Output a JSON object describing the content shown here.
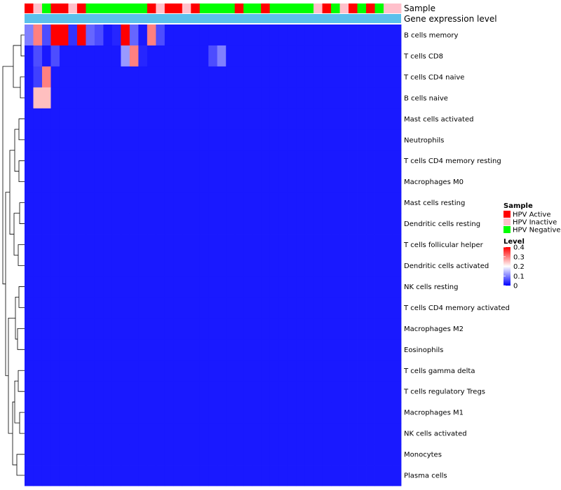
{
  "chart_data": {
    "type": "heatmap",
    "annotation_rows": {
      "sample_label": "Sample",
      "expression_label": "Gene expression level"
    },
    "sample_groups": [
      "Active",
      "Inactive",
      "Negative",
      "Active",
      "Active",
      "Inactive",
      "Active",
      "Negative",
      "Negative",
      "Negative",
      "Negative",
      "Negative",
      "Negative",
      "Negative",
      "Active",
      "Inactive",
      "Active",
      "Active",
      "Inactive",
      "Active",
      "Negative",
      "Negative",
      "Negative",
      "Negative",
      "Active",
      "Negative",
      "Negative",
      "Active",
      "Negative",
      "Negative",
      "Negative",
      "Negative",
      "Negative",
      "Inactive",
      "Active",
      "Negative",
      "Inactive",
      "Active",
      "Negative",
      "Active",
      "Negative",
      "Inactive",
      "Inactive"
    ],
    "rows": [
      "B cells memory",
      "T cells CD8",
      "T cells CD4 naive",
      "B cells naive",
      "Mast cells activated",
      "Neutrophils",
      "T cells CD4 memory resting",
      "Macrophages M0",
      "Mast cells resting",
      "Dendritic cells resting",
      "T cells follicular helper",
      "Dendritic cells activated",
      "NK cells resting",
      "T cells CD4 memory activated",
      "Macrophages M2",
      "Eosinophils",
      "T cells gamma delta",
      "T cells regulatory  Tregs",
      "Macrophages M1",
      "NK cells activated",
      "Monocytes",
      "Plasma cells"
    ],
    "values": [
      [
        0.1,
        0.3,
        0.06,
        0.4,
        0.4,
        0.04,
        0.4,
        0.08,
        0.06,
        0.02,
        0.03,
        0.4,
        0.08,
        0.02,
        0.3,
        0.06,
        0.02,
        0.02,
        0.02,
        0.02,
        0.02,
        0.02,
        0.02,
        0.02,
        0.02,
        0.02,
        0.02,
        0.02,
        0.02,
        0.02,
        0.02,
        0.02,
        0.02,
        0.02,
        0.02,
        0.02,
        0.02,
        0.02,
        0.02,
        0.02,
        0.02,
        0.02,
        0.02
      ],
      [
        0.02,
        0.06,
        0.02,
        0.06,
        0.02,
        0.02,
        0.02,
        0.02,
        0.02,
        0.02,
        0.02,
        0.12,
        0.3,
        0.03,
        0.02,
        0.02,
        0.02,
        0.02,
        0.02,
        0.02,
        0.02,
        0.06,
        0.1,
        0.02,
        0.02,
        0.02,
        0.02,
        0.02,
        0.02,
        0.02,
        0.02,
        0.02,
        0.02,
        0.02,
        0.02,
        0.02,
        0.02,
        0.02,
        0.02,
        0.02,
        0.02,
        0.02,
        0.02
      ],
      [
        0.02,
        0.05,
        0.3,
        0.02,
        0.02,
        0.02,
        0.02,
        0.02,
        0.02,
        0.02,
        0.02,
        0.02,
        0.02,
        0.02,
        0.02,
        0.02,
        0.02,
        0.02,
        0.02,
        0.02,
        0.02,
        0.02,
        0.02,
        0.02,
        0.02,
        0.02,
        0.02,
        0.02,
        0.02,
        0.02,
        0.02,
        0.02,
        0.02,
        0.02,
        0.02,
        0.02,
        0.02,
        0.02,
        0.02,
        0.02,
        0.02,
        0.02,
        0.02
      ],
      [
        0.02,
        0.25,
        0.25,
        0.02,
        0.02,
        0.02,
        0.02,
        0.02,
        0.02,
        0.02,
        0.02,
        0.02,
        0.02,
        0.02,
        0.02,
        0.02,
        0.02,
        0.02,
        0.02,
        0.02,
        0.02,
        0.02,
        0.02,
        0.02,
        0.02,
        0.02,
        0.02,
        0.02,
        0.02,
        0.02,
        0.02,
        0.02,
        0.02,
        0.02,
        0.02,
        0.02,
        0.02,
        0.02,
        0.02,
        0.02,
        0.02,
        0.02,
        0.02
      ],
      [
        0.02,
        0.02,
        0.02,
        0.02,
        0.02,
        0.02,
        0.02,
        0.02,
        0.02,
        0.02,
        0.02,
        0.02,
        0.02,
        0.02,
        0.02,
        0.02,
        0.02,
        0.02,
        0.02,
        0.02,
        0.02,
        0.02,
        0.02,
        0.02,
        0.02,
        0.02,
        0.02,
        0.02,
        0.02,
        0.02,
        0.02,
        0.02,
        0.02,
        0.02,
        0.02,
        0.02,
        0.02,
        0.02,
        0.02,
        0.02,
        0.02,
        0.02,
        0.02
      ],
      [
        0.02,
        0.02,
        0.02,
        0.02,
        0.02,
        0.02,
        0.02,
        0.02,
        0.02,
        0.02,
        0.02,
        0.02,
        0.02,
        0.02,
        0.02,
        0.02,
        0.02,
        0.02,
        0.02,
        0.02,
        0.02,
        0.02,
        0.02,
        0.02,
        0.02,
        0.02,
        0.02,
        0.02,
        0.02,
        0.02,
        0.02,
        0.02,
        0.02,
        0.02,
        0.02,
        0.02,
        0.02,
        0.02,
        0.02,
        0.02,
        0.02,
        0.02,
        0.02
      ],
      [
        0.02,
        0.02,
        0.02,
        0.02,
        0.02,
        0.02,
        0.02,
        0.02,
        0.02,
        0.02,
        0.02,
        0.02,
        0.02,
        0.02,
        0.02,
        0.02,
        0.02,
        0.02,
        0.02,
        0.02,
        0.02,
        0.02,
        0.02,
        0.02,
        0.02,
        0.02,
        0.02,
        0.02,
        0.02,
        0.02,
        0.02,
        0.02,
        0.02,
        0.02,
        0.02,
        0.02,
        0.02,
        0.02,
        0.02,
        0.02,
        0.02,
        0.02,
        0.02
      ],
      [
        0.02,
        0.02,
        0.02,
        0.02,
        0.02,
        0.02,
        0.02,
        0.02,
        0.02,
        0.02,
        0.02,
        0.02,
        0.02,
        0.02,
        0.02,
        0.02,
        0.02,
        0.02,
        0.02,
        0.02,
        0.02,
        0.02,
        0.02,
        0.02,
        0.02,
        0.02,
        0.02,
        0.02,
        0.02,
        0.02,
        0.02,
        0.02,
        0.02,
        0.02,
        0.02,
        0.02,
        0.02,
        0.02,
        0.02,
        0.02,
        0.02,
        0.02,
        0.02
      ],
      [
        0.02,
        0.02,
        0.02,
        0.02,
        0.02,
        0.02,
        0.02,
        0.02,
        0.02,
        0.02,
        0.02,
        0.02,
        0.02,
        0.02,
        0.02,
        0.02,
        0.02,
        0.02,
        0.02,
        0.02,
        0.02,
        0.02,
        0.02,
        0.02,
        0.02,
        0.02,
        0.02,
        0.02,
        0.02,
        0.02,
        0.02,
        0.02,
        0.02,
        0.02,
        0.02,
        0.02,
        0.02,
        0.02,
        0.02,
        0.02,
        0.02,
        0.02,
        0.02
      ],
      [
        0.02,
        0.02,
        0.02,
        0.02,
        0.02,
        0.02,
        0.02,
        0.02,
        0.02,
        0.02,
        0.02,
        0.02,
        0.02,
        0.02,
        0.02,
        0.02,
        0.02,
        0.02,
        0.02,
        0.02,
        0.02,
        0.02,
        0.02,
        0.02,
        0.02,
        0.02,
        0.02,
        0.02,
        0.02,
        0.02,
        0.02,
        0.02,
        0.02,
        0.02,
        0.02,
        0.02,
        0.02,
        0.02,
        0.02,
        0.02,
        0.02,
        0.02,
        0.02
      ],
      [
        0.02,
        0.02,
        0.02,
        0.02,
        0.02,
        0.02,
        0.02,
        0.02,
        0.02,
        0.02,
        0.02,
        0.02,
        0.02,
        0.02,
        0.02,
        0.02,
        0.02,
        0.02,
        0.02,
        0.02,
        0.02,
        0.02,
        0.02,
        0.02,
        0.02,
        0.02,
        0.02,
        0.02,
        0.02,
        0.02,
        0.02,
        0.02,
        0.02,
        0.02,
        0.02,
        0.02,
        0.02,
        0.02,
        0.02,
        0.02,
        0.02,
        0.02,
        0.02
      ],
      [
        0.02,
        0.02,
        0.02,
        0.02,
        0.02,
        0.02,
        0.02,
        0.02,
        0.02,
        0.02,
        0.02,
        0.02,
        0.02,
        0.02,
        0.02,
        0.02,
        0.02,
        0.02,
        0.02,
        0.02,
        0.02,
        0.02,
        0.02,
        0.02,
        0.02,
        0.02,
        0.02,
        0.02,
        0.02,
        0.02,
        0.02,
        0.02,
        0.02,
        0.02,
        0.02,
        0.02,
        0.02,
        0.02,
        0.02,
        0.02,
        0.02,
        0.02,
        0.02
      ],
      [
        0.02,
        0.02,
        0.02,
        0.02,
        0.02,
        0.02,
        0.02,
        0.02,
        0.02,
        0.02,
        0.02,
        0.02,
        0.02,
        0.02,
        0.02,
        0.02,
        0.02,
        0.02,
        0.02,
        0.02,
        0.02,
        0.02,
        0.02,
        0.02,
        0.02,
        0.02,
        0.02,
        0.02,
        0.02,
        0.02,
        0.02,
        0.02,
        0.02,
        0.02,
        0.02,
        0.02,
        0.02,
        0.02,
        0.02,
        0.02,
        0.02,
        0.02,
        0.02
      ],
      [
        0.02,
        0.02,
        0.02,
        0.02,
        0.02,
        0.02,
        0.02,
        0.02,
        0.02,
        0.02,
        0.02,
        0.02,
        0.02,
        0.02,
        0.02,
        0.02,
        0.02,
        0.02,
        0.02,
        0.02,
        0.02,
        0.02,
        0.02,
        0.02,
        0.02,
        0.02,
        0.02,
        0.02,
        0.02,
        0.02,
        0.02,
        0.02,
        0.02,
        0.02,
        0.02,
        0.02,
        0.02,
        0.02,
        0.02,
        0.02,
        0.02,
        0.02,
        0.02
      ],
      [
        0.02,
        0.02,
        0.02,
        0.02,
        0.02,
        0.02,
        0.02,
        0.02,
        0.02,
        0.02,
        0.02,
        0.02,
        0.02,
        0.02,
        0.02,
        0.02,
        0.02,
        0.02,
        0.02,
        0.02,
        0.02,
        0.02,
        0.02,
        0.02,
        0.02,
        0.02,
        0.02,
        0.02,
        0.02,
        0.02,
        0.02,
        0.02,
        0.02,
        0.02,
        0.02,
        0.02,
        0.02,
        0.02,
        0.02,
        0.02,
        0.02,
        0.02,
        0.02
      ],
      [
        0.02,
        0.02,
        0.02,
        0.02,
        0.02,
        0.02,
        0.02,
        0.02,
        0.02,
        0.02,
        0.02,
        0.02,
        0.02,
        0.02,
        0.02,
        0.02,
        0.02,
        0.02,
        0.02,
        0.02,
        0.02,
        0.02,
        0.02,
        0.02,
        0.02,
        0.02,
        0.02,
        0.02,
        0.02,
        0.02,
        0.02,
        0.02,
        0.02,
        0.02,
        0.02,
        0.02,
        0.02,
        0.02,
        0.02,
        0.02,
        0.02,
        0.02,
        0.02
      ],
      [
        0.02,
        0.02,
        0.02,
        0.02,
        0.02,
        0.02,
        0.02,
        0.02,
        0.02,
        0.02,
        0.02,
        0.02,
        0.02,
        0.02,
        0.02,
        0.02,
        0.02,
        0.02,
        0.02,
        0.02,
        0.02,
        0.02,
        0.02,
        0.02,
        0.02,
        0.02,
        0.02,
        0.02,
        0.02,
        0.02,
        0.02,
        0.02,
        0.02,
        0.02,
        0.02,
        0.02,
        0.02,
        0.02,
        0.02,
        0.02,
        0.02,
        0.02,
        0.02
      ],
      [
        0.02,
        0.02,
        0.02,
        0.02,
        0.02,
        0.02,
        0.02,
        0.02,
        0.02,
        0.02,
        0.02,
        0.02,
        0.02,
        0.02,
        0.02,
        0.02,
        0.02,
        0.02,
        0.02,
        0.02,
        0.02,
        0.02,
        0.02,
        0.02,
        0.02,
        0.02,
        0.02,
        0.02,
        0.02,
        0.02,
        0.02,
        0.02,
        0.02,
        0.02,
        0.02,
        0.02,
        0.02,
        0.02,
        0.02,
        0.02,
        0.02,
        0.02,
        0.02
      ],
      [
        0.02,
        0.02,
        0.02,
        0.02,
        0.02,
        0.02,
        0.02,
        0.02,
        0.02,
        0.02,
        0.02,
        0.02,
        0.02,
        0.02,
        0.02,
        0.02,
        0.02,
        0.02,
        0.02,
        0.02,
        0.02,
        0.02,
        0.02,
        0.02,
        0.02,
        0.02,
        0.02,
        0.02,
        0.02,
        0.02,
        0.02,
        0.02,
        0.02,
        0.02,
        0.02,
        0.02,
        0.02,
        0.02,
        0.02,
        0.02,
        0.02,
        0.02,
        0.02
      ],
      [
        0.02,
        0.02,
        0.02,
        0.02,
        0.02,
        0.02,
        0.02,
        0.02,
        0.02,
        0.02,
        0.02,
        0.02,
        0.02,
        0.02,
        0.02,
        0.02,
        0.02,
        0.02,
        0.02,
        0.02,
        0.02,
        0.02,
        0.02,
        0.02,
        0.02,
        0.02,
        0.02,
        0.02,
        0.02,
        0.02,
        0.02,
        0.02,
        0.02,
        0.02,
        0.02,
        0.02,
        0.02,
        0.02,
        0.02,
        0.02,
        0.02,
        0.02,
        0.02
      ],
      [
        0.02,
        0.02,
        0.02,
        0.02,
        0.02,
        0.02,
        0.02,
        0.02,
        0.02,
        0.02,
        0.02,
        0.02,
        0.02,
        0.02,
        0.02,
        0.02,
        0.02,
        0.02,
        0.02,
        0.02,
        0.02,
        0.02,
        0.02,
        0.02,
        0.02,
        0.02,
        0.02,
        0.02,
        0.02,
        0.02,
        0.02,
        0.02,
        0.02,
        0.02,
        0.02,
        0.02,
        0.02,
        0.02,
        0.02,
        0.02,
        0.02,
        0.02,
        0.02
      ],
      [
        0.02,
        0.02,
        0.02,
        0.02,
        0.02,
        0.02,
        0.02,
        0.02,
        0.02,
        0.02,
        0.02,
        0.02,
        0.02,
        0.02,
        0.02,
        0.02,
        0.02,
        0.02,
        0.02,
        0.02,
        0.02,
        0.02,
        0.02,
        0.02,
        0.02,
        0.02,
        0.02,
        0.02,
        0.02,
        0.02,
        0.02,
        0.02,
        0.02,
        0.02,
        0.02,
        0.02,
        0.02,
        0.02,
        0.02,
        0.02,
        0.02,
        0.02,
        0.02
      ]
    ],
    "legend": {
      "sample_title": "Sample",
      "sample_entries": [
        {
          "key": "Active",
          "label": "HPV Active",
          "color": "#ff0000"
        },
        {
          "key": "Inactive",
          "label": "HPV Inactive",
          "color": "#ffc0cb"
        },
        {
          "key": "Negative",
          "label": "HPV Negative",
          "color": "#00ff00"
        }
      ],
      "level_title": "Level",
      "level_ticks": [
        "0.4",
        "0.3",
        "0.2",
        "0.1",
        "0"
      ],
      "level_tick_values": [
        0.4,
        0.3,
        0.2,
        0.1,
        0
      ]
    },
    "color_scale": {
      "low": "#0000ff",
      "mid": "#ffffff",
      "high": "#ff0000",
      "min": 0,
      "mid_value": 0.2,
      "max": 0.4
    },
    "expression_bar_color": "#5bc0eb",
    "dendrogram_color": "#000000"
  }
}
